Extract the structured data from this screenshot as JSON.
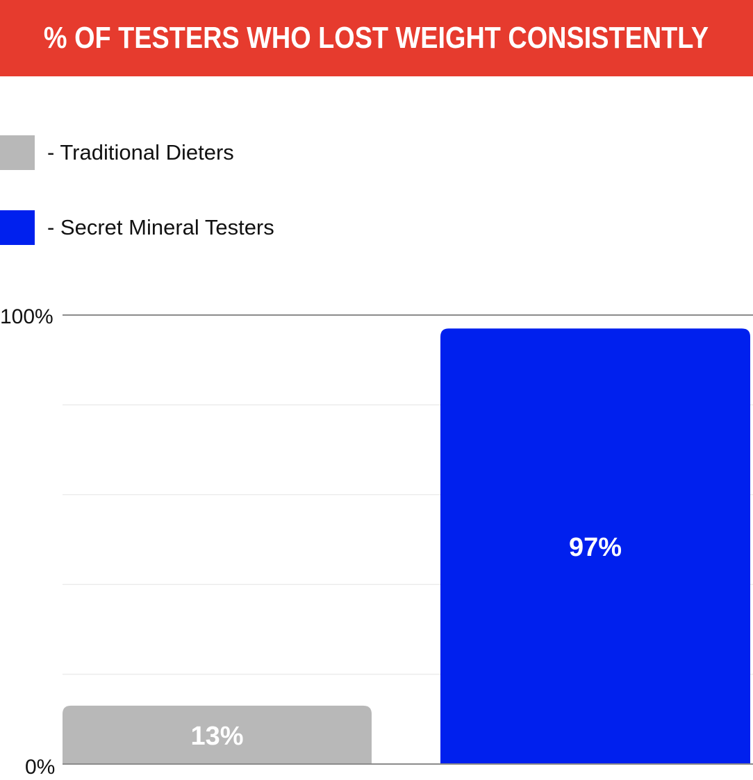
{
  "title": "% OF TESTERS WHO LOST WEIGHT CONSISTENTLY",
  "colors": {
    "banner": "#e63b2e",
    "traditional": "#b8b8b8",
    "secret": "#0020ee"
  },
  "legend": [
    {
      "label": "- Traditional Dieters",
      "color": "#b8b8b8"
    },
    {
      "label": "- Secret Mineral Testers",
      "color": "#0020ee"
    }
  ],
  "chart_data": {
    "type": "bar",
    "title": "% OF TESTERS WHO LOST WEIGHT CONSISTENTLY",
    "categories": [
      "Traditional Dieters",
      "Secret Mineral Testers"
    ],
    "values": [
      13,
      97
    ],
    "data_labels": [
      "13%",
      "97%"
    ],
    "colors": [
      "#b8b8b8",
      "#0020ee"
    ],
    "ylim": [
      0,
      100
    ],
    "yticks": [
      0,
      20,
      40,
      60,
      80,
      100
    ],
    "ytick_labels": [
      "0%",
      "100%"
    ],
    "grid": true,
    "legend_position": "top-left",
    "xlabel": "",
    "ylabel": ""
  }
}
